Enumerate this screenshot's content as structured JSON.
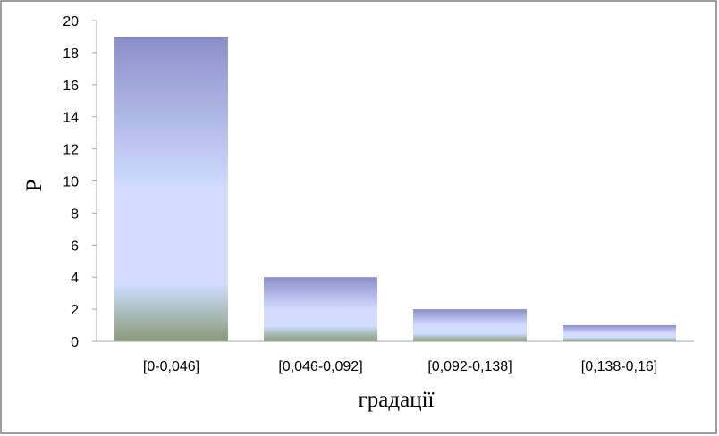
{
  "chart_data": {
    "type": "bar",
    "categories": [
      "[0-0,046]",
      "[0,046-0,092]",
      "[0,092-0,138]",
      "[0,138-0,16]"
    ],
    "values": [
      19,
      4,
      2,
      1
    ],
    "xlabel": "градації",
    "ylabel": "P",
    "ylim": [
      0,
      20
    ],
    "yticks": [
      0,
      2,
      4,
      6,
      8,
      10,
      12,
      14,
      16,
      18,
      20
    ],
    "grid": false,
    "legend": "none",
    "colors": {
      "bar_top": "#8990c9",
      "bar_mid": "#d1dcff",
      "bar_bottom": "#869c78",
      "axis": "#a6a6a6",
      "frame": "#7f7f7f"
    }
  }
}
